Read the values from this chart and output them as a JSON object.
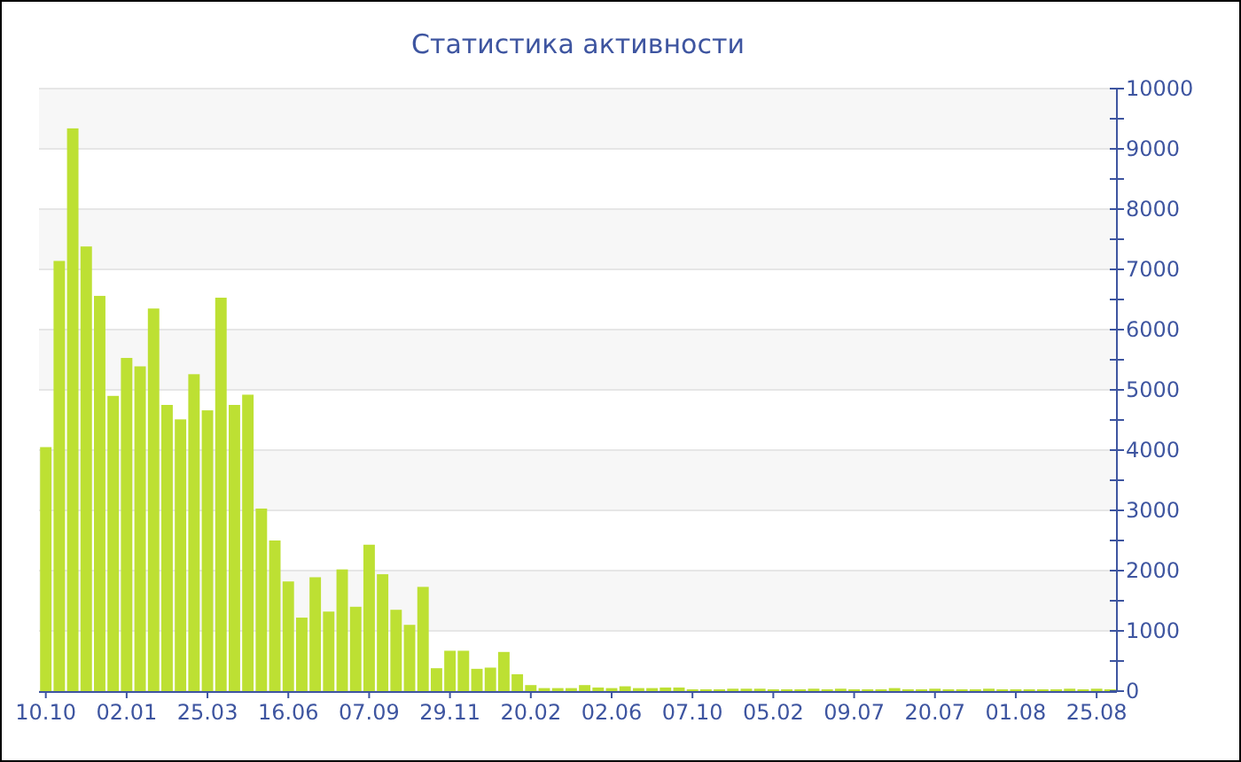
{
  "chart_data": {
    "type": "bar",
    "title": "Статистика активности",
    "categories": [
      "10.10",
      null,
      null,
      null,
      null,
      null,
      "02.01",
      null,
      null,
      null,
      null,
      null,
      "25.03",
      null,
      null,
      null,
      null,
      null,
      "16.06",
      null,
      null,
      null,
      null,
      null,
      "07.09",
      null,
      null,
      null,
      null,
      null,
      "29.11",
      null,
      null,
      null,
      null,
      null,
      "20.02",
      null,
      null,
      null,
      null,
      null,
      "02.06",
      null,
      null,
      null,
      null,
      null,
      "07.10",
      null,
      null,
      null,
      null,
      null,
      "05.02",
      null,
      null,
      null,
      null,
      null,
      "09.07",
      null,
      null,
      null,
      null,
      null,
      "20.07",
      null,
      null,
      null,
      null,
      null,
      "01.08",
      null,
      null,
      null,
      null,
      null,
      "25.08",
      null
    ],
    "values": [
      4050,
      7140,
      9340,
      7380,
      6560,
      4900,
      5530,
      5390,
      6350,
      4750,
      4510,
      5260,
      4660,
      6530,
      4750,
      4920,
      3030,
      2500,
      1820,
      1220,
      1890,
      1320,
      2020,
      1400,
      2430,
      1940,
      1350,
      1100,
      1730,
      380,
      670,
      670,
      370,
      390,
      650,
      280,
      100,
      50,
      50,
      50,
      100,
      60,
      50,
      80,
      50,
      50,
      60,
      60,
      30,
      30,
      30,
      40,
      40,
      40,
      30,
      30,
      30,
      40,
      30,
      40,
      30,
      30,
      30,
      50,
      30,
      30,
      40,
      30,
      30,
      30,
      40,
      30,
      30,
      30,
      30,
      30,
      40,
      30,
      40,
      30
    ],
    "color": "#bde033",
    "ylim": [
      0,
      10000
    ],
    "yticks": [
      0,
      {
        "value": 500,
        "label": null
      },
      1000,
      {
        "value": 1500,
        "label": null
      },
      2000,
      {
        "value": 2500,
        "label": null
      },
      3000,
      {
        "value": 3500,
        "label": null
      },
      4000,
      {
        "value": 4500,
        "label": null
      },
      5000,
      {
        "value": 5500,
        "label": null
      },
      6000,
      {
        "value": 6500,
        "label": null
      },
      7000,
      {
        "value": 7500,
        "label": null
      },
      8000,
      {
        "value": 8500,
        "label": null
      },
      9000,
      {
        "value": 9500,
        "label": null
      },
      10000
    ],
    "grid": "y"
  }
}
